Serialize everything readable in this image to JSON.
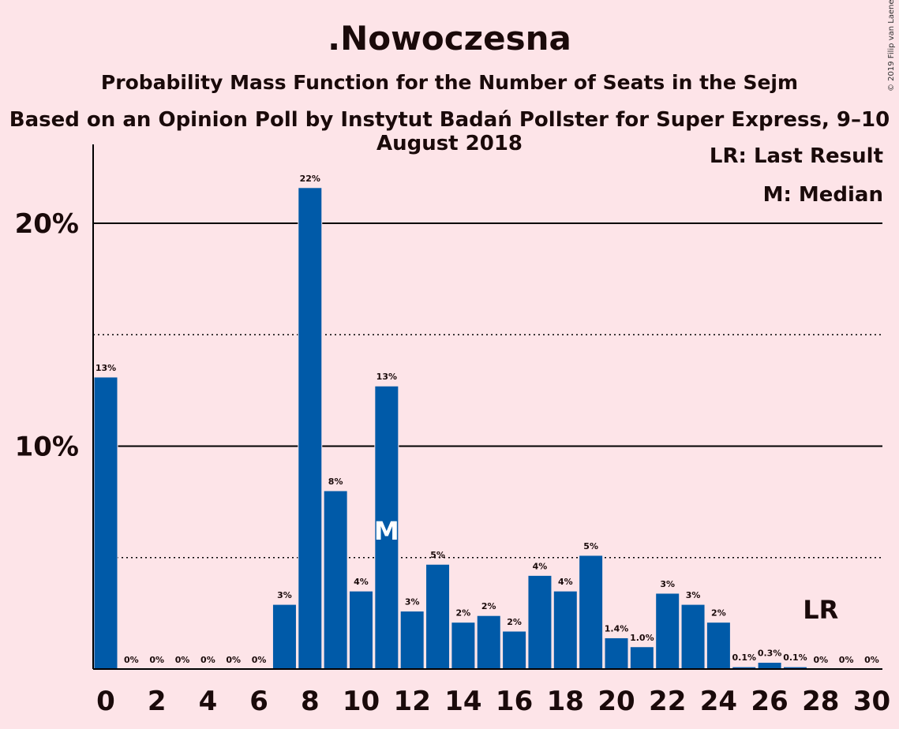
{
  "header": {
    "title": ".Nowoczesna",
    "subtitle": "Probability Mass Function for the Number of Seats in the Sejm",
    "source": "Based on an Opinion Poll by Instytut Badań Pollster for Super Express, 9–10 August 2018",
    "copyright": "© 2019 Filip van Laenen"
  },
  "legend": {
    "last_result": "LR: Last Result",
    "median": "M: Median"
  },
  "colors": {
    "bar": "#005aa8",
    "background": "#fde4e8",
    "text": "#1a0a0a"
  },
  "chart_data": {
    "type": "bar",
    "categories": [
      0,
      1,
      2,
      3,
      4,
      5,
      6,
      7,
      8,
      9,
      10,
      11,
      12,
      13,
      14,
      15,
      16,
      17,
      18,
      19,
      20,
      21,
      22,
      23,
      24,
      25,
      26,
      27,
      28,
      29,
      30
    ],
    "values": [
      13.1,
      0,
      0,
      0,
      0,
      0,
      0,
      2.9,
      21.6,
      8,
      3.5,
      12.7,
      2.6,
      4.7,
      2.1,
      2.4,
      1.7,
      4.2,
      3.5,
      5.1,
      1.4,
      1.0,
      3.4,
      2.9,
      2.1,
      0.1,
      0.3,
      0.1,
      0,
      0,
      0
    ],
    "data_labels": [
      "13%",
      "0%",
      "0%",
      "0%",
      "0%",
      "0%",
      "0%",
      "3%",
      "22%",
      "8%",
      "4%",
      "13%",
      "3%",
      "5%",
      "2%",
      "2%",
      "2%",
      "4%",
      "4%",
      "5%",
      "1.4%",
      "1.0%",
      "3%",
      "3%",
      "2%",
      "0.1%",
      "0.3%",
      "0.1%",
      "0%",
      "0%",
      "0%"
    ],
    "x_tick_labels": [
      "0",
      "2",
      "4",
      "6",
      "8",
      "10",
      "12",
      "14",
      "16",
      "18",
      "20",
      "22",
      "24",
      "26",
      "28",
      "30"
    ],
    "y_tick_labels": [
      "10%",
      "20%"
    ],
    "ylim": [
      0,
      23.5
    ],
    "solid_gridlines": [
      10,
      20
    ],
    "dotted_gridlines": [
      5,
      15
    ],
    "median_seat": 11,
    "median_marker": "M",
    "last_result_seat": 28,
    "last_result_marker": "LR"
  }
}
